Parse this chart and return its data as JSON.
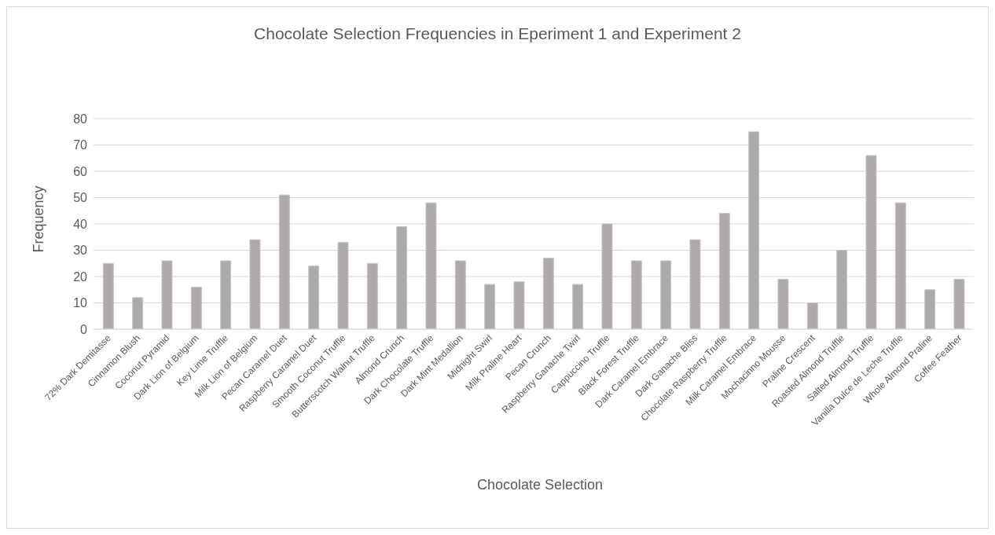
{
  "chart_data": {
    "type": "bar",
    "title": "Chocolate Selection Frequencies in Eperiment 1 and Experiment 2",
    "xlabel": "Chocolate Selection",
    "ylabel": "Frequency",
    "categories": [
      "72% Dark Demitasse",
      "Cinnamon Blush",
      "Coconut Pyramid",
      "Dark Lion of Belgium",
      "Key Lime Truffle",
      "Milk Lion of Belgium",
      "Pecan Caramel Duet",
      "Raspberry Caramel Duet",
      "Smooth Coconut Truffle",
      "Butterscotch Walnut Truffle",
      "Almond Crunch",
      "Dark Chocolate Truffle",
      "Dark Mint Medallion",
      "Midnight Swirl",
      "Milk Praline Heart",
      "Pecan Crunch",
      "Raspberry Ganache Twirl",
      "Cappuccino Truffle",
      "Black Forest Truffle",
      "Dark Caramel Embrace",
      "Dark Ganache Bliss",
      "Chocolate Raspberry Truffle",
      "Milk Caramel Embrace",
      "Mochacinno Mousse",
      "Praline Crescent",
      "Roasted Almond Truffle",
      "Salted Almond Truffle",
      "Vanilla Dulce de Leche Truffle",
      "Whole Almond Praline",
      "Coffee Feather"
    ],
    "values": [
      25,
      12,
      26,
      16,
      26,
      34,
      51,
      24,
      33,
      25,
      39,
      48,
      26,
      17,
      18,
      27,
      17,
      40,
      26,
      26,
      34,
      44,
      75,
      19,
      10,
      30,
      66,
      48,
      15,
      19
    ],
    "color": "#aeaaaa",
    "ylim": [
      0,
      80
    ],
    "yticks": [
      0,
      10,
      20,
      30,
      40,
      50,
      60,
      70,
      80
    ],
    "grid": "y"
  }
}
